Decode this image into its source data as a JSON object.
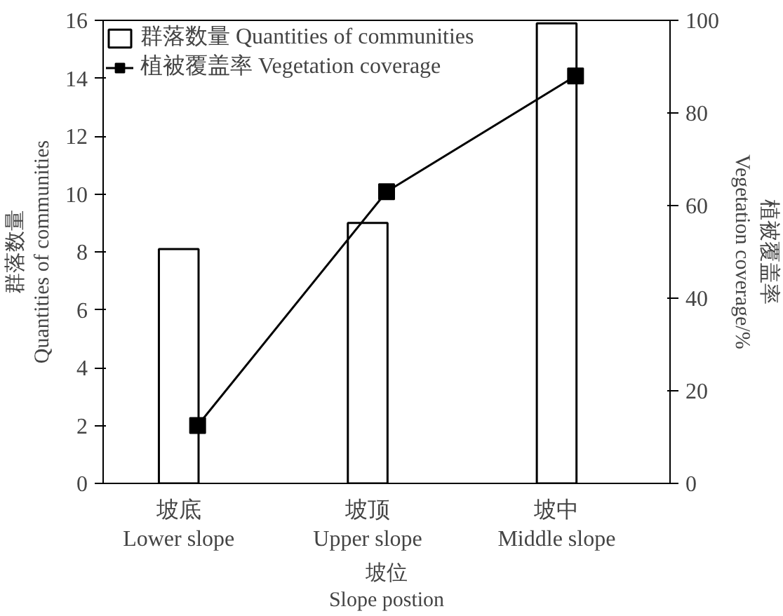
{
  "chart_data": {
    "type": "bar",
    "categories": [
      "坡底\nLower slope",
      "坡顶\nUpper slope",
      "坡中\nMiddle slope"
    ],
    "xlabel": "坡位\nSlope postion",
    "ylabel": "群落数量\nQuantities of communities",
    "y2label": "植被覆盖率\nVegetation coverage/%",
    "ylim": [
      0,
      16
    ],
    "yticks": [
      0,
      2,
      4,
      6,
      8,
      10,
      12,
      14,
      16
    ],
    "y2lim": [
      0,
      100
    ],
    "y2ticks": [
      0,
      20,
      40,
      60,
      80,
      100
    ],
    "legend": "top left",
    "grid": false,
    "marker": "square",
    "line_style": "solid",
    "series": [
      {
        "name": "群落数量 Quantities of communities",
        "color": "#ffffff",
        "values": [
          8.1,
          9,
          15.9
        ]
      },
      {
        "name": "植被覆盖率 Vegetation coverage",
        "type": "line",
        "axis": "y2",
        "color": "#000000",
        "values": [
          12.5,
          63,
          88
        ]
      }
    ]
  }
}
